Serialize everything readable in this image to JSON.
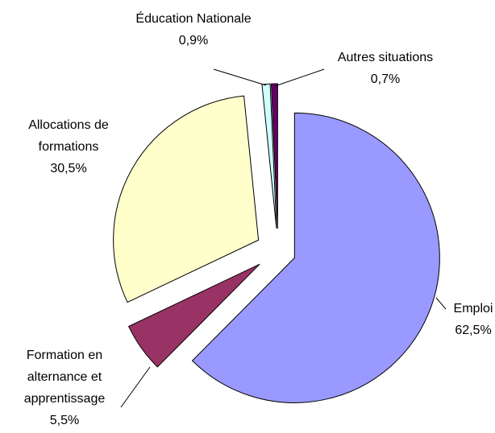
{
  "chart_data": {
    "type": "pie",
    "categories": [
      "Emploi",
      "Formation en alternance et apprentissage",
      "Allocations de formations",
      "Éducation Nationale",
      "Autres situations"
    ],
    "values": [
      62.5,
      5.5,
      30.5,
      0.9,
      0.7
    ],
    "value_labels": [
      "62,5%",
      "5,5%",
      "30,5%",
      "0,9%",
      "0,7%"
    ],
    "colors": [
      "#9999ff",
      "#993366",
      "#ffffcc",
      "#ccffff",
      "#660066"
    ]
  }
}
